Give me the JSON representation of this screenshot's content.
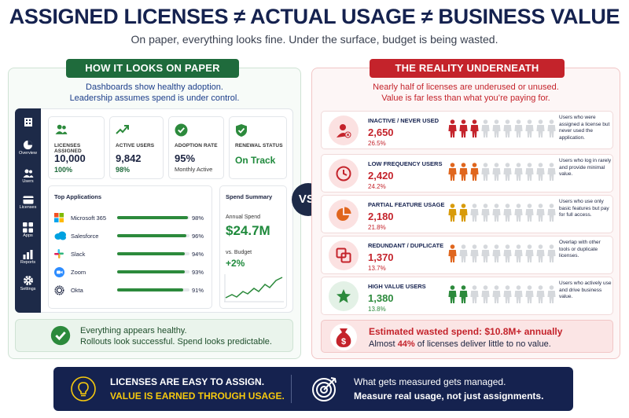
{
  "header": {
    "title": "ASSIGNED LICENSES ≠ ACTUAL USAGE ≠ BUSINESS VALUE",
    "subtitle": "On paper, everything looks fine. Under the surface, budget is being wasted."
  },
  "left": {
    "pill": "HOW IT LOOKS ON PAPER",
    "lead_1": "Dashboards show healthy adoption.",
    "lead_2": "Leadership assumes spend is under control.",
    "nav": [
      {
        "label": "",
        "icon": "building-icon"
      },
      {
        "label": "Overview",
        "icon": "pie-icon"
      },
      {
        "label": "Users",
        "icon": "users-icon"
      },
      {
        "label": "Licenses",
        "icon": "card-icon"
      },
      {
        "label": "Apps",
        "icon": "grid-icon"
      },
      {
        "label": "Reports",
        "icon": "bars-icon"
      },
      {
        "label": "Settings",
        "icon": "gear-icon"
      }
    ],
    "stats": [
      {
        "label": "LICENSES ASSIGNED",
        "value": "10,000",
        "sub": "100%",
        "icon": "users-icon"
      },
      {
        "label": "ACTIVE USERS",
        "value": "9,842",
        "sub": "98%",
        "icon": "trend-up-icon"
      },
      {
        "label": "ADOPTION RATE",
        "value": "95%",
        "sub": "Monthly Active",
        "icon": "check-circle-icon"
      },
      {
        "label": "RENEWAL STATUS",
        "value": "On Track",
        "sub": "",
        "icon": "shield-check-icon"
      }
    ],
    "apps_title": "Top Applications",
    "apps": [
      {
        "name": "Microsoft 365",
        "pct_label": "98%",
        "pct": 98
      },
      {
        "name": "Salesforce",
        "pct_label": "96%",
        "pct": 96
      },
      {
        "name": "Slack",
        "pct_label": "94%",
        "pct": 94
      },
      {
        "name": "Zoom",
        "pct_label": "93%",
        "pct": 93
      },
      {
        "name": "Okta",
        "pct_label": "91%",
        "pct": 91
      }
    ],
    "spend": {
      "title": "Spend Summary",
      "annual_label": "Annual Spend",
      "annual_value": "$24.7M",
      "budget_label": "vs. Budget",
      "budget_value": "+2%"
    },
    "healthy_1": "Everything appears healthy.",
    "healthy_2": "Rollouts look successful. Spend looks predictable."
  },
  "vs_label": "VS.",
  "right": {
    "pill": "THE REALITY UNDERNEATH",
    "lead_1": "Nearly half of licenses are underused or unused.",
    "lead_2": "Value is far less than what you’re paying for.",
    "rows": [
      {
        "category": "INACTIVE / NEVER USED",
        "count": "2,650",
        "pct": "26.5%",
        "active_people": 3,
        "color": "#c4232b",
        "tint": "#fbe1e1",
        "icon": "user-x-icon",
        "desc": "Users who were assigned a license but never used the application."
      },
      {
        "category": "LOW FREQUENCY USERS",
        "count": "2,420",
        "pct": "24.2%",
        "active_people": 3,
        "color": "#e0661e",
        "tint": "#fbe1e1",
        "icon": "clock-icon",
        "desc": "Users who log in rarely and provide minimal value."
      },
      {
        "category": "PARTIAL FEATURE USAGE",
        "count": "2,180",
        "pct": "21.8%",
        "active_people": 2,
        "color": "#d89b0a",
        "tint": "#fbe1e1",
        "icon": "pie-icon",
        "desc": "Users who use only basic features but pay for full access."
      },
      {
        "category": "REDUNDANT / DUPLICATE",
        "count": "1,370",
        "pct": "13.7%",
        "active_people": 1,
        "color": "#e0661e",
        "tint": "#fbe1e1",
        "icon": "copy-icon",
        "desc": "Overlap with other tools or duplicate licenses."
      },
      {
        "category": "HIGH VALUE USERS",
        "count": "1,380",
        "pct": "13.8%",
        "active_people": 2,
        "color": "#2c8a3c",
        "tint": "#e3f1e6",
        "icon": "star-icon",
        "desc": "Users who actively use and drive business value."
      }
    ],
    "waste_1": "Estimated wasted spend: $10.8M+ annually",
    "waste_2_pre": "Almost ",
    "waste_2_strong": "44%",
    "waste_2_post": " of licenses deliver little to no value."
  },
  "footer": {
    "line_1": "LICENSES ARE EASY TO ASSIGN.",
    "line_2": "VALUE IS EARNED THROUGH USAGE.",
    "line_3": "What gets measured gets managed.",
    "line_4": "Measure real usage, not just assignments."
  },
  "colors": {
    "navy": "#15224f",
    "green": "#1f6b3c",
    "red": "#c4232b",
    "yellow": "#f6c90e"
  }
}
